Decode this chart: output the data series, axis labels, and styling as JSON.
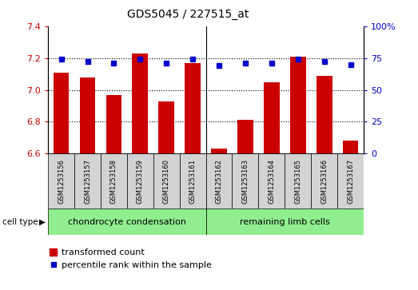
{
  "title": "GDS5045 / 227515_at",
  "samples": [
    "GSM1253156",
    "GSM1253157",
    "GSM1253158",
    "GSM1253159",
    "GSM1253160",
    "GSM1253161",
    "GSM1253162",
    "GSM1253163",
    "GSM1253164",
    "GSM1253165",
    "GSM1253166",
    "GSM1253167"
  ],
  "transformed_count": [
    7.11,
    7.08,
    6.97,
    7.23,
    6.93,
    7.17,
    6.63,
    6.81,
    7.05,
    7.21,
    7.09,
    6.68
  ],
  "percentile_rank": [
    74,
    72,
    71,
    74,
    71,
    74,
    69,
    71,
    71,
    74,
    72,
    70
  ],
  "group1_label": "chondrocyte condensation",
  "group2_label": "remaining limb cells",
  "group1_count": 6,
  "group2_count": 6,
  "ylim_left": [
    6.6,
    7.4
  ],
  "ylim_right": [
    0,
    100
  ],
  "yticks_left": [
    6.6,
    6.8,
    7.0,
    7.2,
    7.4
  ],
  "yticks_right": [
    0,
    25,
    50,
    75,
    100
  ],
  "ytick_right_labels": [
    "0",
    "25",
    "50",
    "75",
    "100%"
  ],
  "bar_color": "#cc0000",
  "dot_color": "#0000cc",
  "bar_bottom": 6.6,
  "bar_width": 0.6,
  "group1_bg": "#90ee90",
  "group2_bg": "#90ee90",
  "cell_bg": "#d3d3d3",
  "legend_bar_label": "transformed count",
  "legend_dot_label": "percentile rank within the sample",
  "grid_color": "#000000"
}
